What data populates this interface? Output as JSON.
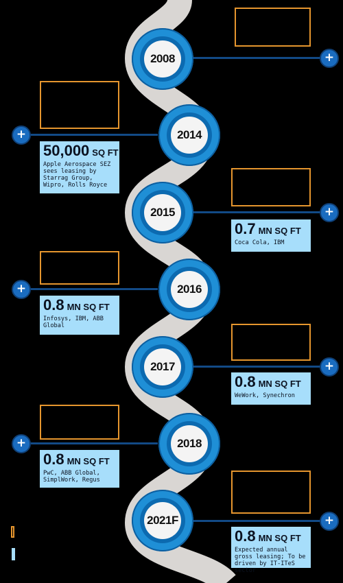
{
  "timeline": [
    {
      "year": "2008",
      "big": "",
      "unit": "",
      "desc": ""
    },
    {
      "year": "2014",
      "big": "50,000",
      "unit": "SQ FT",
      "desc": "Apple Aerospace SEZ sees leasing by Starrag Group, Wipro, Rolls Royce"
    },
    {
      "year": "2015",
      "big": "0.7",
      "unit": "MN SQ FT",
      "desc": "Coca Cola, IBM"
    },
    {
      "year": "2016",
      "big": "0.8",
      "unit": "MN SQ FT",
      "desc": "Infosys, IBM, ABB Global"
    },
    {
      "year": "2017",
      "big": "0.8",
      "unit": "MN SQ FT",
      "desc": "WeWork, Synechron"
    },
    {
      "year": "2018",
      "big": "0.8",
      "unit": "MN SQ FT",
      "desc": "PwC, ABB Global, SimplWork, Regus"
    },
    {
      "year": "2021F",
      "big": "0.8",
      "unit": "MN SQ FT",
      "desc": "Expected annual gross leasing; To be driven by IT-ITeS sector"
    }
  ],
  "colors": {
    "road": "#d9d6d3",
    "node_outer": "#1f8fd6",
    "node_inner": "#0c6ab0",
    "connector": "#124a86",
    "plus": "#1a6cc0",
    "frame": "#e6962e",
    "card": "#a7defb",
    "background": "#000000"
  },
  "icons": {
    "expand": "plus-icon"
  }
}
